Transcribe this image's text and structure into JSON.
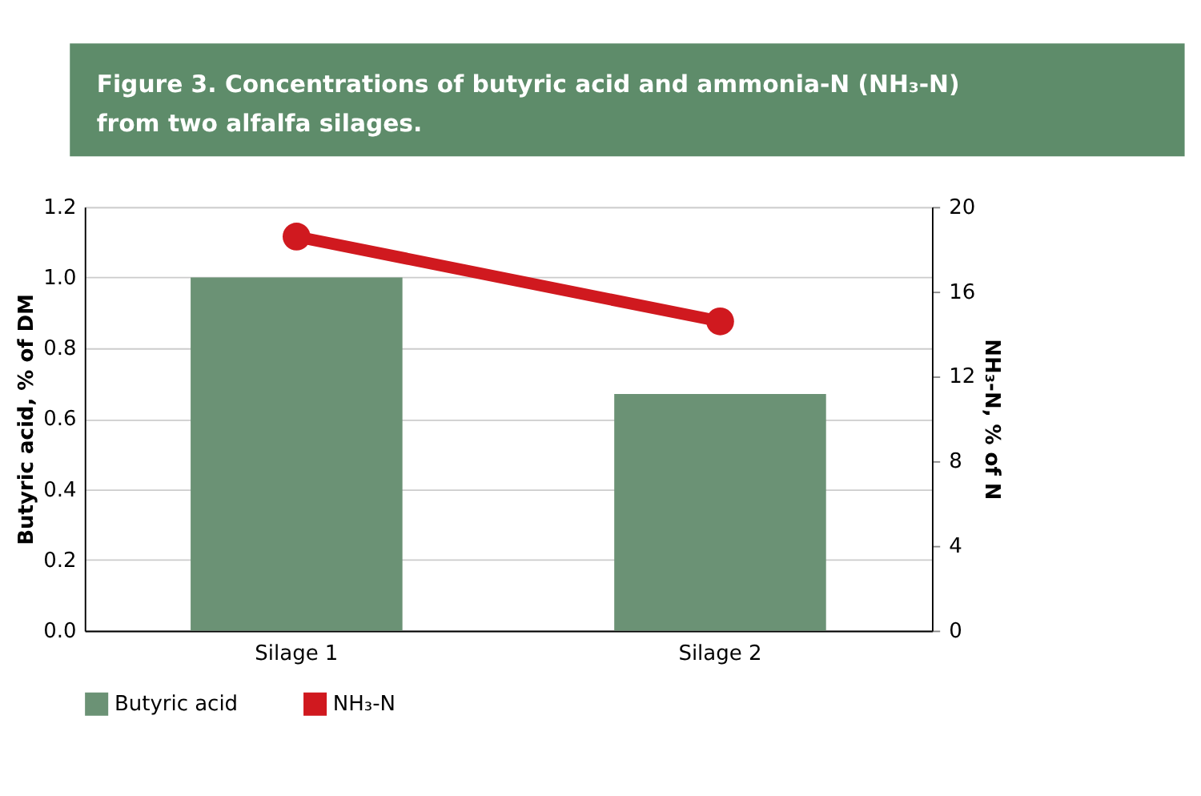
{
  "chart_data": {
    "type": "bar",
    "title": "Figure 3. Concentrations of butyric acid and ammonia-N (NH₃-N) from two alfalfa silages.",
    "categories": [
      "Silage 1",
      "Silage 2"
    ],
    "series": [
      {
        "name": "Butyric acid",
        "color": "#6b9275",
        "values": [
          1.0,
          0.67
        ]
      },
      {
        "name": "NH₃-N",
        "type": "line",
        "axis": "y2",
        "color": "#d0191f",
        "values": [
          18.6,
          14.6
        ],
        "marker": "circle"
      }
    ],
    "ylabel": "Butyric acid, % of DM",
    "y2label": "NH₃-N, % of N",
    "ylim": [
      0,
      1.2
    ],
    "yticks": [
      {
        "value": 0,
        "label": "0.0"
      },
      0.2,
      0.4,
      0.6,
      0.8,
      {
        "value": 1,
        "label": "1.0"
      },
      1.2
    ],
    "y2lim": [
      0,
      20
    ],
    "y2ticks": [
      0,
      4,
      8,
      12,
      16,
      20
    ],
    "grid": "y",
    "legend": "bottom"
  }
}
